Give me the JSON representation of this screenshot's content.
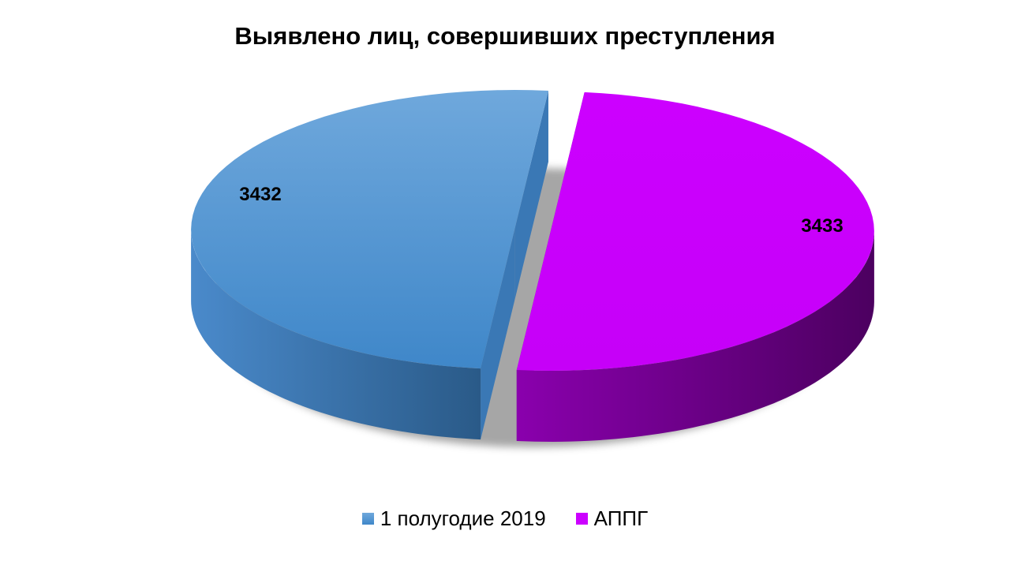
{
  "chart_data": {
    "type": "pie",
    "style": "3d-exploded",
    "title": "Выявлено лиц, совершивших преступления",
    "slices": [
      {
        "name": "1 полугодие 2019",
        "value": 3432,
        "label": "3432",
        "color": "#5b9bd5"
      },
      {
        "name": "АППГ",
        "value": 3433,
        "label": "3433",
        "color": "#cc00ff"
      }
    ],
    "legend_position": "bottom"
  }
}
